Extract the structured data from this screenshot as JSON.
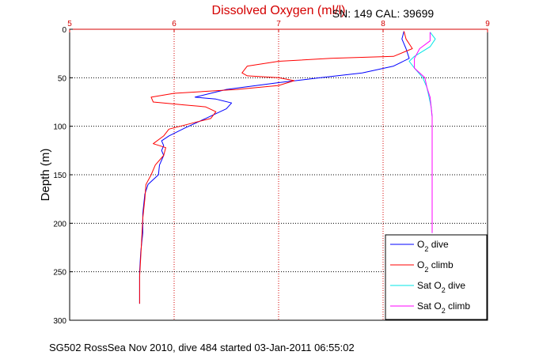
{
  "chart_data": {
    "type": "line",
    "title": "Dissolved Oxygen (ml/l)",
    "ylabel": "Depth (m)",
    "xlim": [
      5,
      9
    ],
    "ylim": [
      0,
      300
    ],
    "y_reversed": true,
    "x_axis_position": "top",
    "x_ticks": [
      "5",
      "6",
      "7",
      "8",
      "9"
    ],
    "y_ticks": [
      "0",
      "50",
      "100",
      "150",
      "200",
      "250",
      "300"
    ],
    "grid": true,
    "legend_position": "bottom-right",
    "annotations": {
      "sn": "SN: 149  CAL: 39699",
      "footer": "SG502 RossSea Nov 2010, dive 484 started 03-Jan-2011 06:55:02"
    },
    "series": [
      {
        "name": "O2 dive",
        "legend_main": "O",
        "legend_sub": "2",
        "legend_rest": " dive",
        "color": "#0000ff",
        "points": [
          [
            8.2,
            2
          ],
          [
            8.18,
            10
          ],
          [
            8.22,
            20
          ],
          [
            8.25,
            30
          ],
          [
            8.1,
            38
          ],
          [
            7.8,
            45
          ],
          [
            7.4,
            50
          ],
          [
            7.0,
            55
          ],
          [
            6.5,
            62
          ],
          [
            6.35,
            66
          ],
          [
            6.2,
            70
          ],
          [
            6.4,
            72
          ],
          [
            6.55,
            76
          ],
          [
            6.5,
            82
          ],
          [
            6.3,
            92
          ],
          [
            6.1,
            102
          ],
          [
            5.95,
            110
          ],
          [
            5.88,
            115
          ],
          [
            5.9,
            120
          ],
          [
            5.88,
            125
          ],
          [
            5.9,
            130
          ],
          [
            5.86,
            140
          ],
          [
            5.85,
            150
          ],
          [
            5.75,
            160
          ],
          [
            5.72,
            170
          ],
          [
            5.7,
            190
          ],
          [
            5.7,
            210
          ],
          [
            5.68,
            230
          ],
          [
            5.67,
            250
          ],
          [
            5.67,
            270
          ],
          [
            5.67,
            283
          ]
        ]
      },
      {
        "name": "O2 climb",
        "legend_main": "O",
        "legend_sub": "2",
        "legend_rest": " climb",
        "color": "#ff0000",
        "points": [
          [
            8.2,
            2
          ],
          [
            8.22,
            10
          ],
          [
            8.28,
            20
          ],
          [
            8.1,
            28
          ],
          [
            7.5,
            30
          ],
          [
            7.0,
            33
          ],
          [
            6.7,
            38
          ],
          [
            6.65,
            45
          ],
          [
            6.7,
            48
          ],
          [
            7.0,
            50
          ],
          [
            7.15,
            53
          ],
          [
            7.0,
            58
          ],
          [
            6.6,
            62
          ],
          [
            6.0,
            66
          ],
          [
            5.78,
            70
          ],
          [
            5.8,
            75
          ],
          [
            6.1,
            78
          ],
          [
            6.3,
            80
          ],
          [
            6.4,
            85
          ],
          [
            6.35,
            92
          ],
          [
            6.2,
            96
          ],
          [
            5.95,
            103
          ],
          [
            5.9,
            110
          ],
          [
            5.8,
            118
          ],
          [
            5.92,
            122
          ],
          [
            5.9,
            130
          ],
          [
            5.82,
            140
          ],
          [
            5.78,
            150
          ],
          [
            5.73,
            160
          ],
          [
            5.72,
            175
          ],
          [
            5.7,
            195
          ],
          [
            5.69,
            215
          ],
          [
            5.68,
            235
          ],
          [
            5.67,
            255
          ],
          [
            5.67,
            270
          ],
          [
            5.67,
            283
          ]
        ]
      },
      {
        "name": "Sat O2 dive",
        "legend_main": "Sat O",
        "legend_sub": "2",
        "legend_rest": " dive",
        "color": "#00e5e5",
        "points": [
          [
            8.45,
            3
          ],
          [
            8.5,
            10
          ],
          [
            8.45,
            18
          ],
          [
            8.3,
            28
          ],
          [
            8.25,
            33
          ],
          [
            8.3,
            40
          ],
          [
            8.38,
            50
          ],
          [
            8.42,
            60
          ],
          [
            8.44,
            70
          ],
          [
            8.46,
            80
          ],
          [
            8.47,
            90
          ],
          [
            8.47,
            100
          ],
          [
            8.47,
            115
          ],
          [
            8.47,
            130
          ],
          [
            8.47,
            150
          ],
          [
            8.47,
            170
          ],
          [
            8.47,
            190
          ],
          [
            8.47,
            210
          ]
        ]
      },
      {
        "name": "Sat O2 climb",
        "legend_main": "Sat O",
        "legend_sub": "2",
        "legend_rest": " climb",
        "color": "#ff00ff",
        "points": [
          [
            8.45,
            3
          ],
          [
            8.45,
            12
          ],
          [
            8.35,
            20
          ],
          [
            8.3,
            30
          ],
          [
            8.3,
            40
          ],
          [
            8.4,
            50
          ],
          [
            8.42,
            60
          ],
          [
            8.45,
            70
          ],
          [
            8.46,
            80
          ],
          [
            8.47,
            90
          ],
          [
            8.47,
            100
          ],
          [
            8.47,
            115
          ],
          [
            8.47,
            130
          ],
          [
            8.47,
            150
          ],
          [
            8.47,
            170
          ],
          [
            8.47,
            190
          ],
          [
            8.47,
            210
          ]
        ]
      }
    ]
  }
}
